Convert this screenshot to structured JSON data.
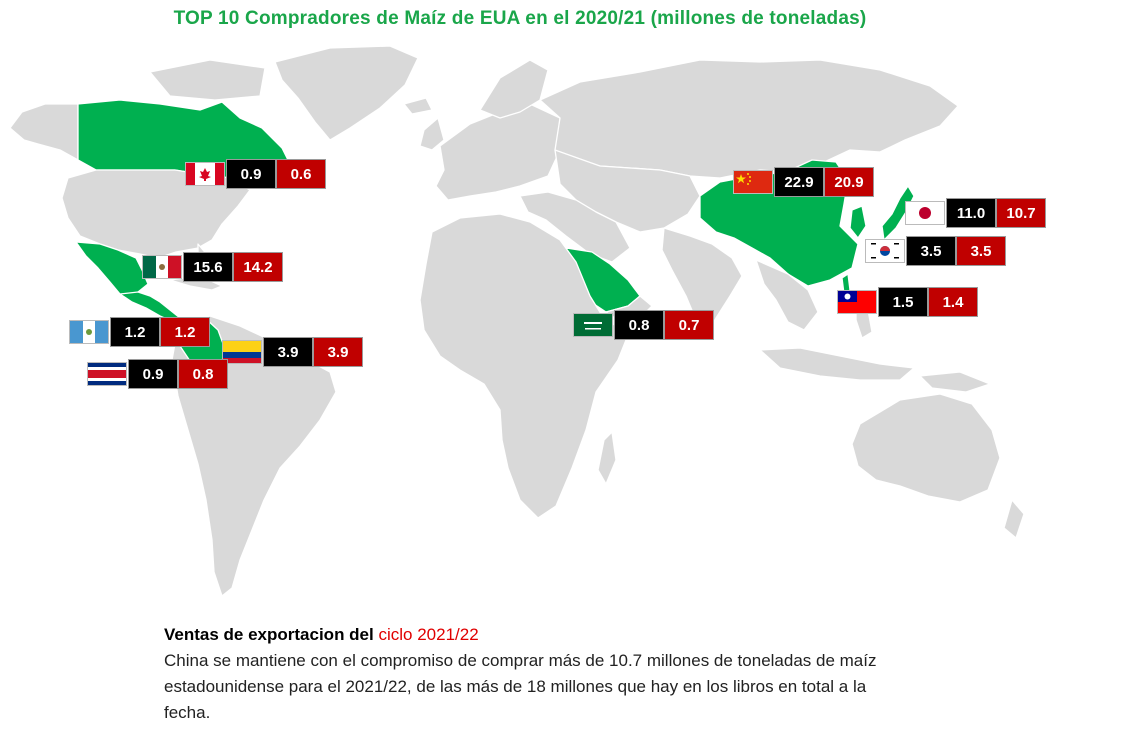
{
  "title": "TOP 10 Compradores de Maíz de EUA en el 2020/21 (millones de toneladas)",
  "colors": {
    "highlight": "#00b050",
    "land": "#d9d9d9",
    "value_2020_21": "#000000",
    "value_2021_22": "#c00000",
    "title": "#1aa64a"
  },
  "labels": [
    {
      "key": "canada",
      "flag": "canada-flag",
      "v1": "0.9",
      "v2": "0.6"
    },
    {
      "key": "mexico",
      "flag": "mexico-flag",
      "v1": "15.6",
      "v2": "14.2"
    },
    {
      "key": "guatemala",
      "flag": "guatemala-flag",
      "v1": "1.2",
      "v2": "1.2"
    },
    {
      "key": "colombia",
      "flag": "colombia-flag",
      "v1": "3.9",
      "v2": "3.9"
    },
    {
      "key": "costa_rica",
      "flag": "costa-rica-flag",
      "v1": "0.9",
      "v2": "0.8"
    },
    {
      "key": "saudi",
      "flag": "saudi-arabia-flag",
      "v1": "0.8",
      "v2": "0.7"
    },
    {
      "key": "china",
      "flag": "china-flag",
      "v1": "22.9",
      "v2": "20.9"
    },
    {
      "key": "japan",
      "flag": "japan-flag",
      "v1": "11.0",
      "v2": "10.7"
    },
    {
      "key": "korea",
      "flag": "south-korea-flag",
      "v1": "3.5",
      "v2": "3.5"
    },
    {
      "key": "taiwan",
      "flag": "taiwan-flag",
      "v1": "1.5",
      "v2": "1.4"
    }
  ],
  "note": {
    "heading_prefix": "Ventas de exportacion del ",
    "heading_highlight": "ciclo 2021/22",
    "body": "China se mantiene con el compromiso de comprar más de 10.7 millones de toneladas de maíz estadounidense para el 2021/22, de las más de 18 millones que hay en los libros en total a la fecha."
  }
}
